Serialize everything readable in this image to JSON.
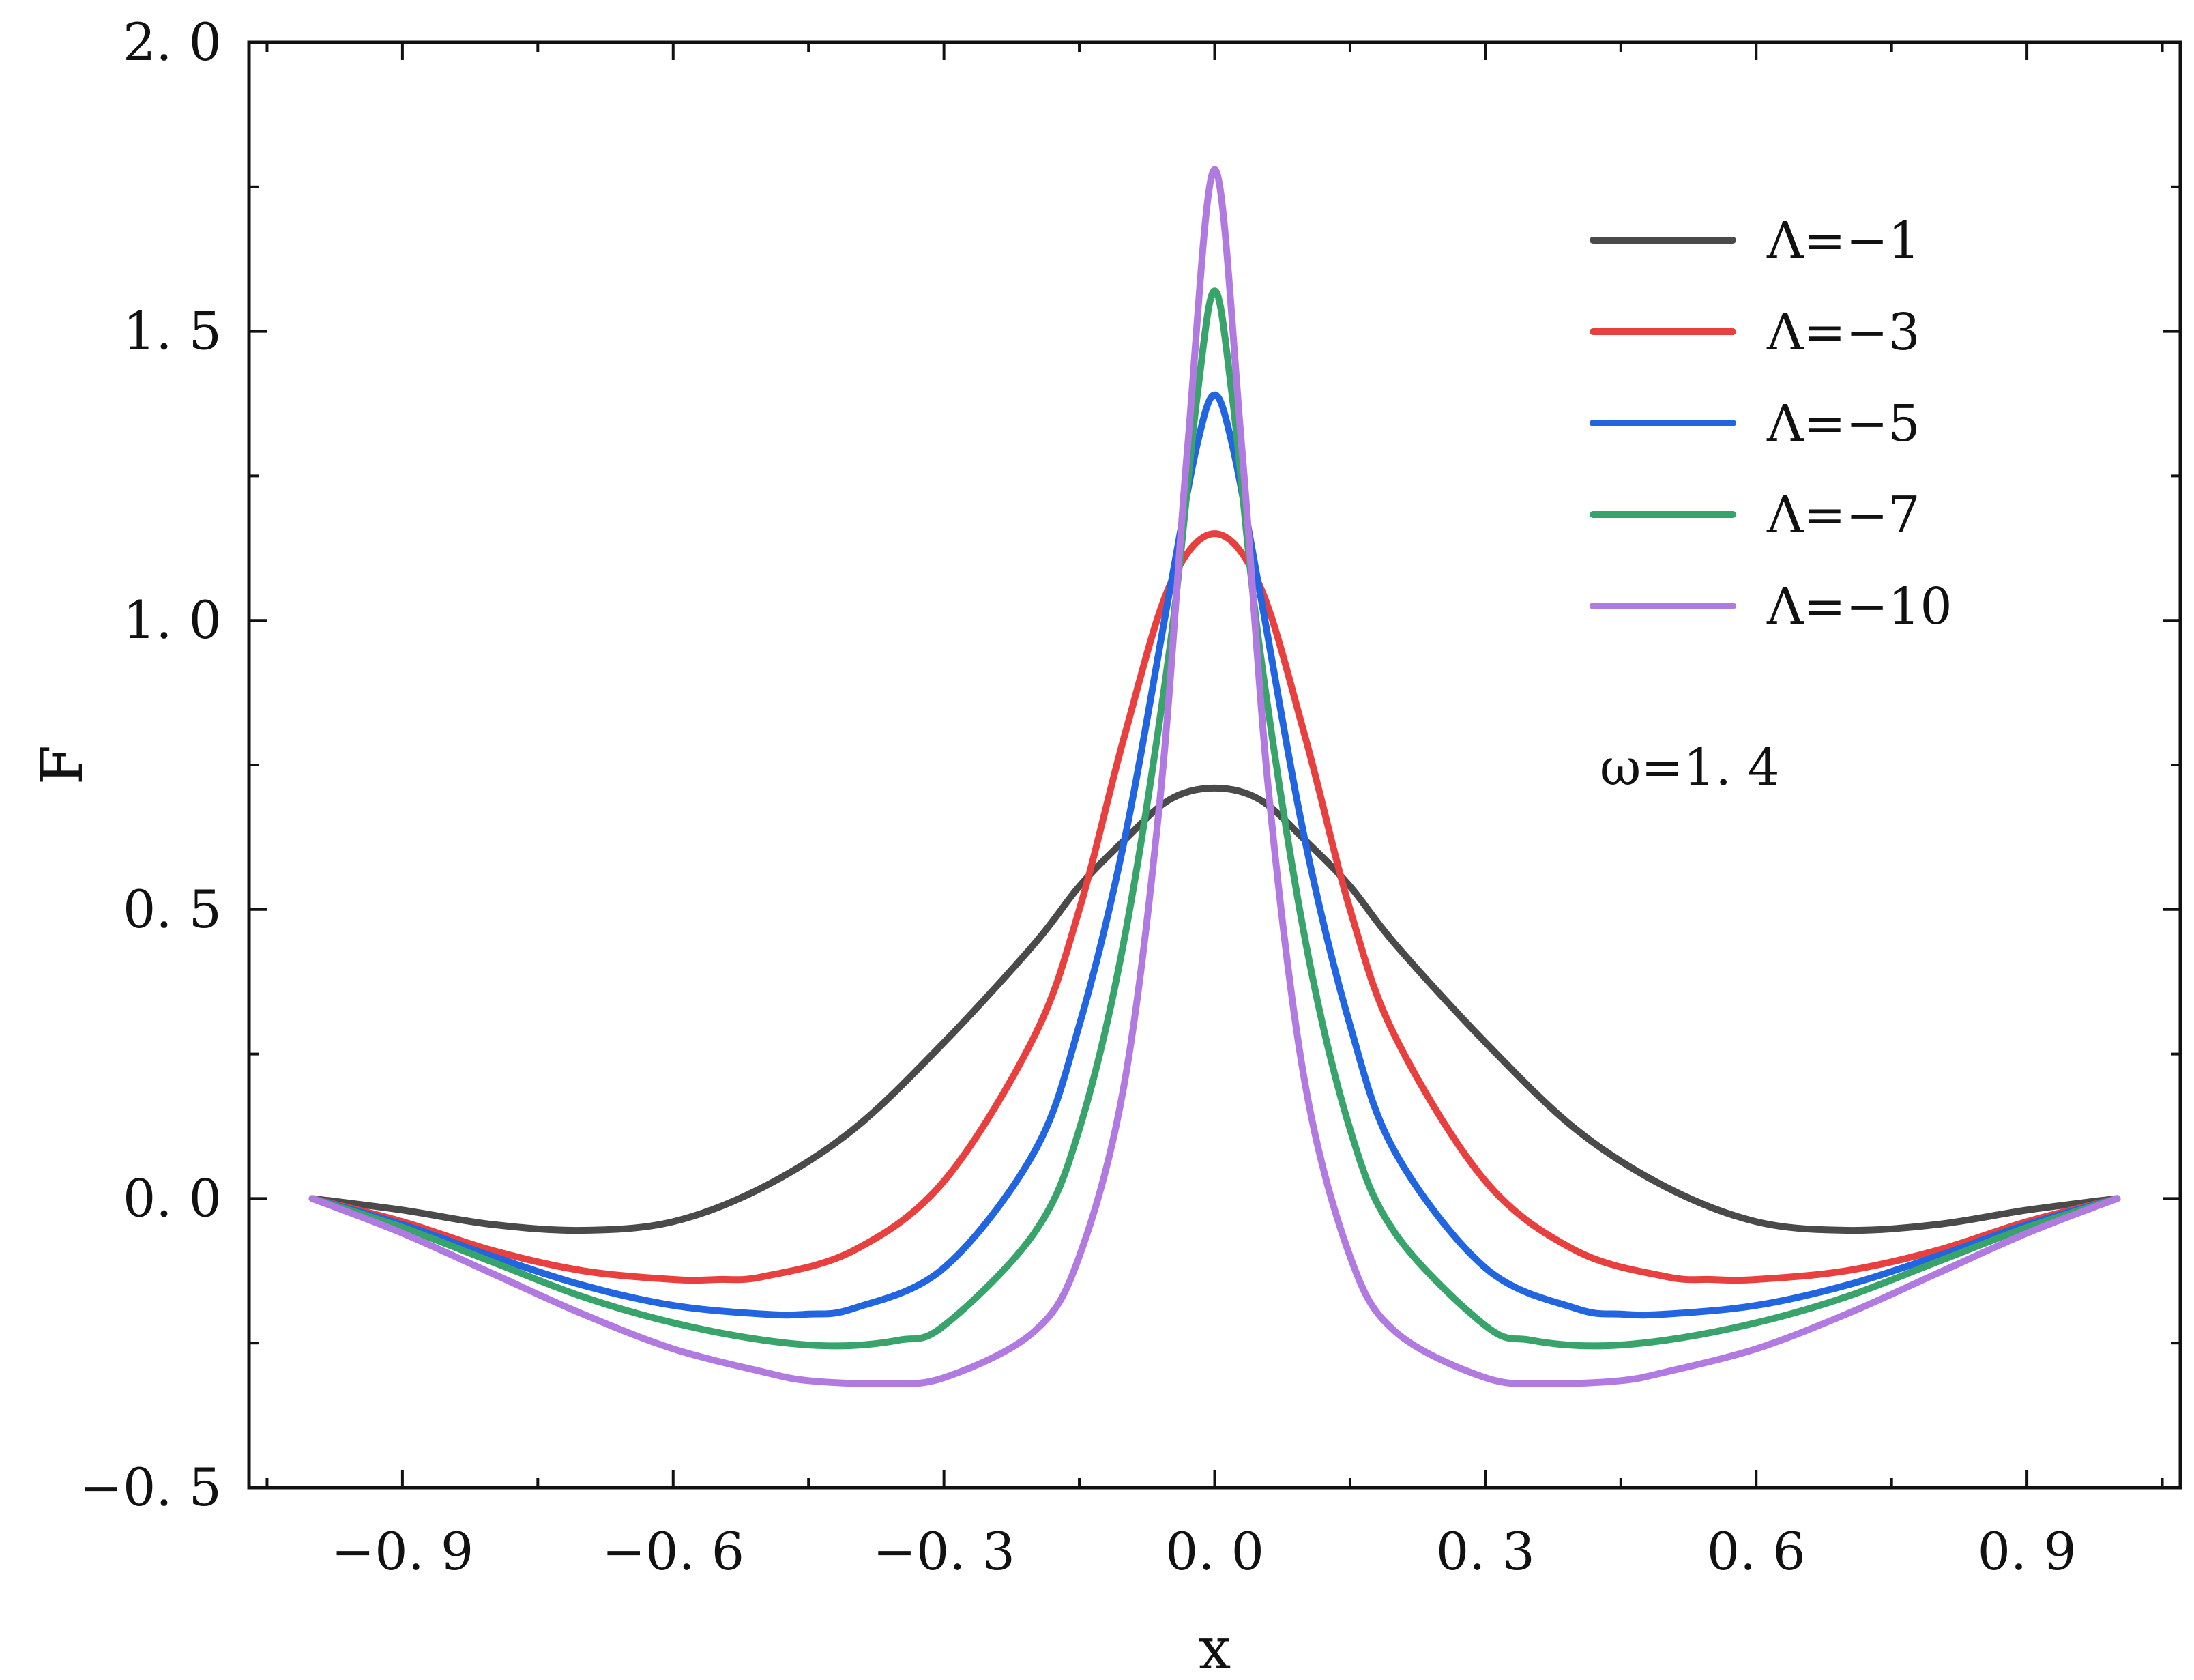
{
  "chart_data": {
    "type": "line",
    "title": "",
    "xlabel": "x",
    "ylabel": "F",
    "xlim": [
      -1.07,
      1.07
    ],
    "ylim": [
      -0.5,
      2.0
    ],
    "x_ticks": [
      -0.9,
      -0.6,
      -0.3,
      0.0,
      0.3,
      0.6,
      0.9
    ],
    "x_tick_labels": [
      "−0. 9",
      "−0. 6",
      "−0. 3",
      "0. 0",
      "0. 3",
      "0. 6",
      "0. 9"
    ],
    "y_ticks": [
      -0.5,
      0.0,
      0.5,
      1.0,
      1.5,
      2.0
    ],
    "y_tick_labels": [
      "−0. 5",
      "0. 0",
      "0. 5",
      "1. 0",
      "1. 5",
      "2. 0"
    ],
    "grid": false,
    "legend_position": "top-right",
    "annotation": "ω=1. 4",
    "series": [
      {
        "name": "Λ=−1",
        "color": "#4a4a4a",
        "x": [
          -1.0,
          -0.9,
          -0.8,
          -0.7,
          -0.6,
          -0.5,
          -0.4,
          -0.3,
          -0.2,
          -0.15,
          -0.1,
          -0.05,
          0.0,
          0.05,
          0.1,
          0.15,
          0.2,
          0.3,
          0.4,
          0.5,
          0.6,
          0.7,
          0.8,
          0.9,
          1.0
        ],
        "y": [
          0.0,
          -0.02,
          -0.045,
          -0.055,
          -0.04,
          0.02,
          0.12,
          0.27,
          0.44,
          0.54,
          0.62,
          0.69,
          0.71,
          0.69,
          0.62,
          0.54,
          0.44,
          0.27,
          0.12,
          0.02,
          -0.04,
          -0.055,
          -0.045,
          -0.02,
          0.0
        ]
      },
      {
        "name": "Λ=−3",
        "color": "#e8403f",
        "x": [
          -1.0,
          -0.9,
          -0.8,
          -0.7,
          -0.6,
          -0.55,
          -0.5,
          -0.4,
          -0.3,
          -0.2,
          -0.15,
          -0.1,
          -0.05,
          0.0,
          0.05,
          0.1,
          0.15,
          0.2,
          0.3,
          0.4,
          0.5,
          0.55,
          0.6,
          0.7,
          0.8,
          0.9,
          1.0
        ],
        "y": [
          0.0,
          -0.04,
          -0.09,
          -0.125,
          -0.14,
          -0.14,
          -0.135,
          -0.09,
          0.03,
          0.28,
          0.5,
          0.8,
          1.06,
          1.15,
          1.06,
          0.8,
          0.5,
          0.28,
          0.03,
          -0.09,
          -0.135,
          -0.14,
          -0.14,
          -0.125,
          -0.09,
          -0.04,
          0.0
        ]
      },
      {
        "name": "Λ=−5",
        "color": "#2166e0",
        "x": [
          -1.0,
          -0.9,
          -0.8,
          -0.7,
          -0.6,
          -0.5,
          -0.45,
          -0.4,
          -0.3,
          -0.2,
          -0.15,
          -0.1,
          -0.05,
          -0.02,
          0.0,
          0.02,
          0.05,
          0.1,
          0.15,
          0.2,
          0.3,
          0.4,
          0.45,
          0.5,
          0.6,
          0.7,
          0.8,
          0.9,
          1.0
        ],
        "y": [
          0.0,
          -0.045,
          -0.1,
          -0.15,
          -0.185,
          -0.2,
          -0.2,
          -0.19,
          -0.12,
          0.08,
          0.3,
          0.62,
          1.05,
          1.3,
          1.39,
          1.3,
          1.05,
          0.62,
          0.3,
          0.08,
          -0.12,
          -0.19,
          -0.2,
          -0.2,
          -0.185,
          -0.15,
          -0.1,
          -0.045,
          0.0
        ]
      },
      {
        "name": "Λ=−7",
        "color": "#38a36a",
        "x": [
          -1.0,
          -0.9,
          -0.8,
          -0.7,
          -0.6,
          -0.5,
          -0.42,
          -0.35,
          -0.3,
          -0.2,
          -0.15,
          -0.1,
          -0.05,
          -0.02,
          0.0,
          0.02,
          0.05,
          0.1,
          0.15,
          0.2,
          0.3,
          0.35,
          0.42,
          0.5,
          0.6,
          0.7,
          0.8,
          0.9,
          1.0
        ],
        "y": [
          0.0,
          -0.05,
          -0.11,
          -0.17,
          -0.215,
          -0.245,
          -0.255,
          -0.245,
          -0.22,
          -0.06,
          0.12,
          0.45,
          0.95,
          1.38,
          1.57,
          1.38,
          0.95,
          0.45,
          0.12,
          -0.06,
          -0.22,
          -0.245,
          -0.255,
          -0.245,
          -0.215,
          -0.17,
          -0.11,
          -0.05,
          0.0
        ]
      },
      {
        "name": "Λ=−10",
        "color": "#b07ae0",
        "x": [
          -1.0,
          -0.9,
          -0.8,
          -0.7,
          -0.6,
          -0.5,
          -0.45,
          -0.37,
          -0.3,
          -0.2,
          -0.15,
          -0.1,
          -0.06,
          -0.03,
          0.0,
          0.03,
          0.06,
          0.1,
          0.15,
          0.2,
          0.3,
          0.37,
          0.45,
          0.5,
          0.6,
          0.7,
          0.8,
          0.9,
          1.0
        ],
        "y": [
          0.0,
          -0.06,
          -0.13,
          -0.2,
          -0.26,
          -0.3,
          -0.315,
          -0.32,
          -0.31,
          -0.23,
          -0.1,
          0.2,
          0.7,
          1.3,
          1.78,
          1.3,
          0.7,
          0.2,
          -0.1,
          -0.23,
          -0.31,
          -0.32,
          -0.315,
          -0.3,
          -0.26,
          -0.2,
          -0.13,
          -0.06,
          0.0
        ]
      }
    ]
  }
}
